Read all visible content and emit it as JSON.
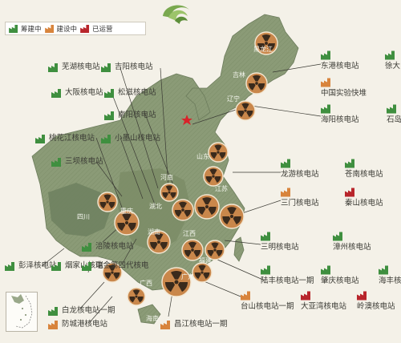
{
  "legend": {
    "planned": "筹建中",
    "building": "建设中",
    "operating": "已运营"
  },
  "colors": {
    "planned": "#3f8f3f",
    "building": "#d8843c",
    "operating": "#b8252b",
    "land": "#8a9a76",
    "land_dark": "#5f6f51",
    "sea": "#f4f1e8",
    "reactor_bg": "#c9874b",
    "capital_star": "#d8232a"
  },
  "provinces": [
    {
      "name": "黑龙江"
    },
    {
      "name": "吉林"
    },
    {
      "name": "辽宁"
    },
    {
      "name": "山东"
    },
    {
      "name": "江苏"
    },
    {
      "name": "河南"
    },
    {
      "name": "湖北"
    },
    {
      "name": "重庆"
    },
    {
      "name": "四川"
    },
    {
      "name": "湖南"
    },
    {
      "name": "江西"
    },
    {
      "name": "福建"
    },
    {
      "name": "广西"
    },
    {
      "name": "广东"
    },
    {
      "name": "海南"
    }
  ],
  "stations": [
    {
      "name": "芜湖核电站",
      "status": "planned"
    },
    {
      "name": "吉阳核电站",
      "status": "planned"
    },
    {
      "name": "大阪核电站",
      "status": "planned"
    },
    {
      "name": "松滋核电站",
      "status": "planned"
    },
    {
      "name": "南阳核电站",
      "status": "planned"
    },
    {
      "name": "桃花江核电站",
      "status": "planned"
    },
    {
      "name": "小墨山核电站",
      "status": "planned"
    },
    {
      "name": "三坝核电站",
      "status": "planned"
    },
    {
      "name": "涪陵核电站",
      "status": "planned"
    },
    {
      "name": "彭泽核电站",
      "status": "planned"
    },
    {
      "name": "烟家山核电",
      "status": "planned"
    },
    {
      "name": "瑞金第四代核电",
      "status": "planned"
    },
    {
      "name": "白龙核电站一期",
      "status": "planned"
    },
    {
      "name": "防城港核电站",
      "status": "building"
    },
    {
      "name": "昌江核电站一期",
      "status": "building"
    },
    {
      "name": "东港核电站",
      "status": "planned"
    },
    {
      "name": "徐大",
      "status": "planned"
    },
    {
      "name": "中国实验快堆",
      "status": "building"
    },
    {
      "name": "海阳核电站",
      "status": "planned"
    },
    {
      "name": "石岛",
      "status": "planned"
    },
    {
      "name": "龙游核电站",
      "status": "planned"
    },
    {
      "name": "苍南核电站",
      "status": "planned"
    },
    {
      "name": "三门核电站",
      "status": "building"
    },
    {
      "name": "秦山核电站",
      "status": "operating"
    },
    {
      "name": "三明核电站",
      "status": "planned"
    },
    {
      "name": "漳州核电站",
      "status": "planned"
    },
    {
      "name": "陆丰核电站一期",
      "status": "planned"
    },
    {
      "name": "肇庆核电站",
      "status": "planned"
    },
    {
      "name": "海丰核",
      "status": "planned"
    },
    {
      "name": "台山核电站一期",
      "status": "building"
    },
    {
      "name": "大亚湾核电站",
      "status": "operating"
    },
    {
      "name": "岭澳核电站",
      "status": "operating"
    }
  ]
}
